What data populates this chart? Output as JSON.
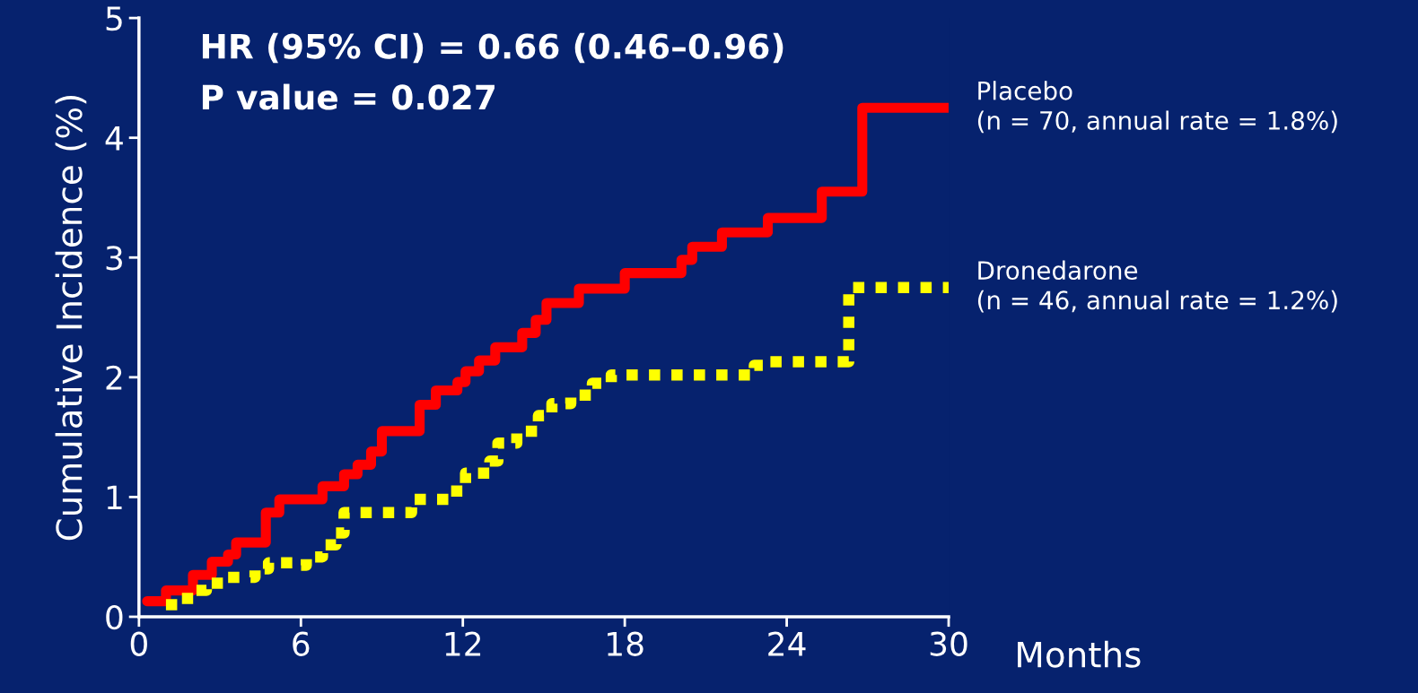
{
  "chart_data": {
    "type": "step",
    "xlabel": "Months",
    "ylabel": "Cumulative Incidence (%)",
    "xlim": [
      0,
      30
    ],
    "xticks": [
      0,
      6,
      12,
      18,
      24,
      30
    ],
    "ylim": [
      0,
      5
    ],
    "yticks": [
      0,
      1,
      2,
      3,
      4,
      5
    ],
    "grid": false,
    "legend": false,
    "annotations": [
      "HR (95% CI) = 0.66 (0.46–0.96)",
      "P value = 0.027"
    ],
    "series": [
      {
        "name": "Placebo\n(n = 70, annual rate = 1.8%)",
        "color": "#ff0000",
        "line_style": "solid",
        "x": [
          0.3,
          1.0,
          2.0,
          2.7,
          3.3,
          3.6,
          4.7,
          5.2,
          6.8,
          7.6,
          8.1,
          8.6,
          9.0,
          10.4,
          11.0,
          11.8,
          12.1,
          12.6,
          13.2,
          14.2,
          14.7,
          15.1,
          16.3,
          18.0,
          20.1,
          20.5,
          21.6,
          23.3,
          25.3,
          26.8,
          30
        ],
        "values": [
          0.13,
          0.22,
          0.35,
          0.46,
          0.52,
          0.62,
          0.87,
          0.98,
          1.09,
          1.19,
          1.27,
          1.38,
          1.55,
          1.77,
          1.89,
          1.96,
          2.05,
          2.14,
          2.25,
          2.37,
          2.48,
          2.62,
          2.74,
          2.87,
          2.98,
          3.09,
          3.21,
          3.33,
          3.55,
          4.25,
          4.25
        ]
      },
      {
        "name": "Dronedarone\n(n = 46, annual rate = 1.2%)",
        "color": "#ffff00",
        "line_style": "dotted",
        "x": [
          1.0,
          1.8,
          2.5,
          3.3,
          4.3,
          4.8,
          5.7,
          6.2,
          6.8,
          7.3,
          7.6,
          10.1,
          11.5,
          12.1,
          13.0,
          13.3,
          14.0,
          14.8,
          15.3,
          16.0,
          16.8,
          17.5,
          22.8,
          23.3,
          26.3,
          30
        ],
        "values": [
          0.1,
          0.22,
          0.28,
          0.33,
          0.4,
          0.45,
          0.43,
          0.5,
          0.6,
          0.7,
          0.87,
          0.98,
          1.05,
          1.2,
          1.3,
          1.45,
          1.55,
          1.68,
          1.78,
          1.85,
          1.95,
          2.02,
          2.1,
          2.13,
          2.75,
          2.75
        ]
      }
    ]
  }
}
